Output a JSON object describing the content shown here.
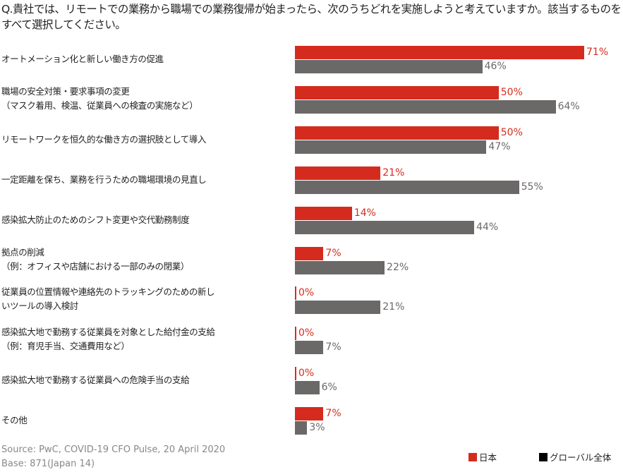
{
  "chart_data": {
    "type": "bar",
    "orientation": "horizontal",
    "title": "Q.貴社では、リモートでの業務から職場での業務復帰が始まったら、次のうちどれを実施しようと考えていますか。該当するものをすべて選択してください。",
    "categories": [
      "オートメーション化と新しい働き方の促進",
      "職場の安全対策・要求事項の変更\n（マスク着用、検温、従業員への検査の実施など）",
      "リモートワークを恒久的な働き方の選択肢として導入",
      "一定距離を保ち、業務を行うための職場環境の見直し",
      "感染拡大防止のためのシフト変更や交代勤務制度",
      "拠点の削減\n（例：オフィスや店舗における一部のみの閉業）",
      "従業員の位置情報や連絡先のトラッキングのための新し\nいツールの導入検討",
      "感染拡大地で勤務する従業員を対象とした給付金の支給\n（例：育児手当、交通費用など）",
      "感染拡大地で勤務する従業員への危険手当の支給",
      "その他"
    ],
    "series": [
      {
        "name": "日本",
        "color": "#d52b1e",
        "values": [
          71,
          50,
          50,
          21,
          14,
          7,
          0,
          0,
          0,
          7
        ]
      },
      {
        "name": "グローバル全体",
        "color": "#6b6868",
        "legend_color": "#000000",
        "values": [
          46,
          64,
          47,
          55,
          44,
          22,
          21,
          7,
          6,
          3
        ]
      }
    ],
    "value_suffix": "%",
    "xlim": [
      0,
      100
    ],
    "grid": false,
    "legend_placement": "bottom-right"
  },
  "footer": {
    "source": "Source: PwC, COVID-19 CFO Pulse, 20 April 2020",
    "base": "Base: 871(Japan 14)"
  }
}
